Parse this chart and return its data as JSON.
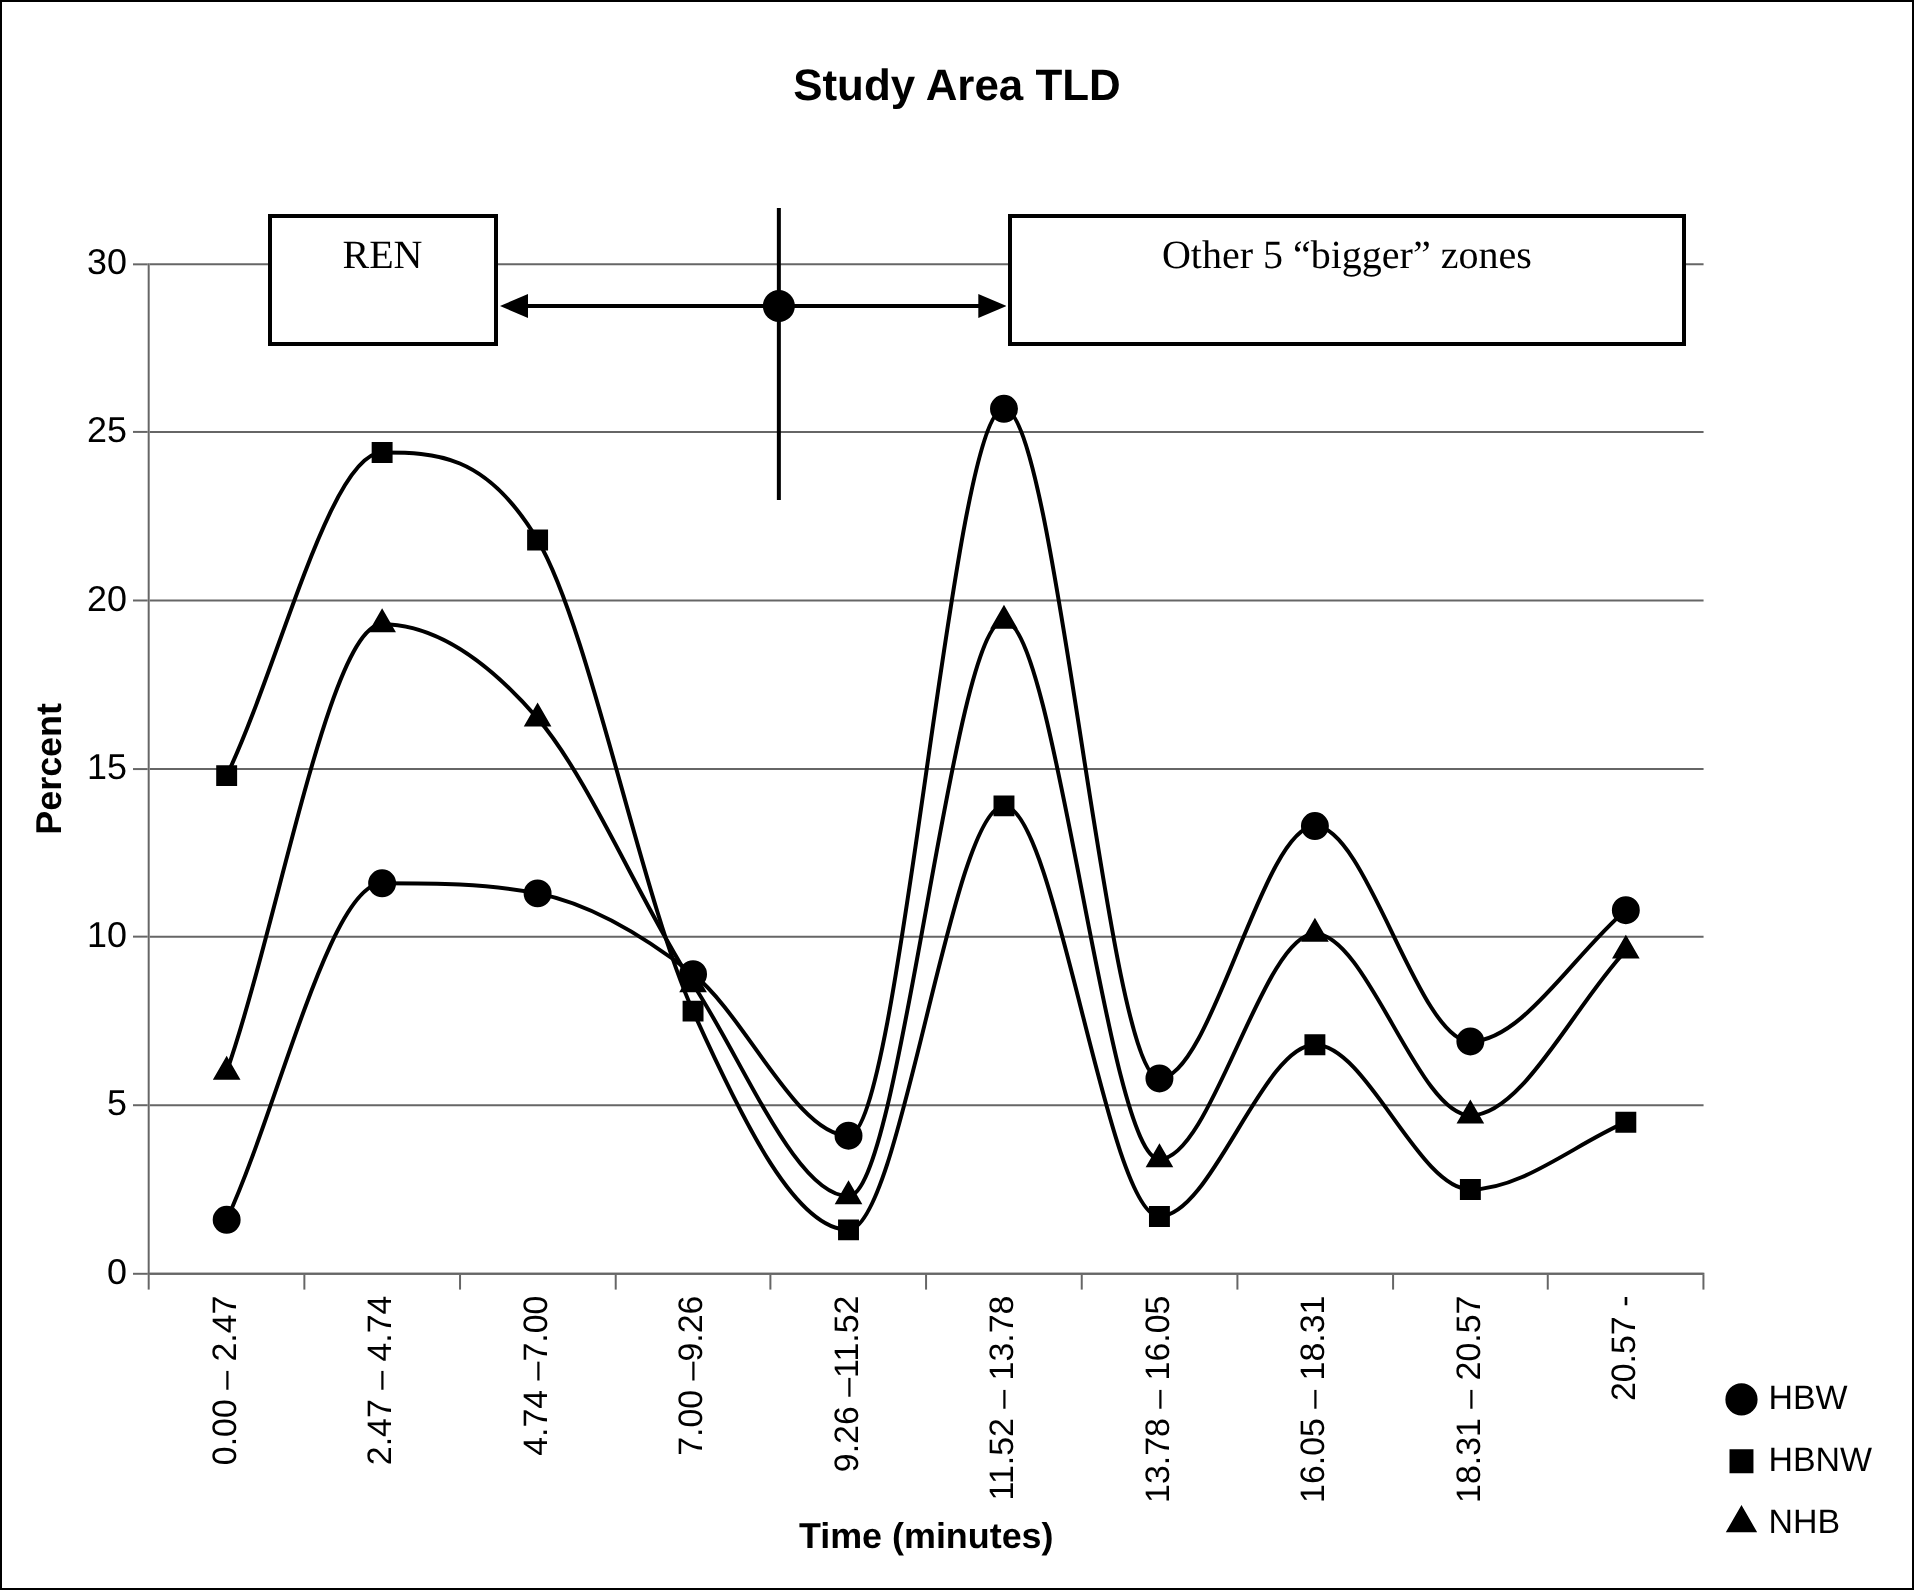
{
  "chart_data": {
    "type": "line",
    "title": "Study Area TLD",
    "xlabel": "Time (minutes)",
    "ylabel": "Percent",
    "categories": [
      "0.00 – 2.47",
      "2.47 – 4.74",
      "4.74 –7.00",
      "7.00 –9.26",
      "9.26 –11.52",
      "11.52 – 13.78",
      "13.78 – 16.05",
      "16.05 – 18.31",
      "18.31 – 20.57",
      "20.57 -"
    ],
    "series": [
      {
        "name": "HBW",
        "color": "#000000",
        "marker": "circle",
        "values": [
          1.6,
          11.6,
          11.3,
          8.9,
          4.1,
          25.7,
          5.8,
          13.3,
          6.9,
          10.8
        ]
      },
      {
        "name": "HBNW",
        "color": "#000000",
        "marker": "square",
        "values": [
          14.8,
          24.4,
          21.8,
          7.8,
          1.3,
          13.9,
          1.7,
          6.8,
          2.5,
          4.5
        ]
      },
      {
        "name": "NHB",
        "color": "#000000",
        "marker": "triangle",
        "values": [
          6.0,
          19.3,
          16.5,
          8.6,
          2.3,
          19.4,
          3.4,
          10.1,
          4.7,
          9.6
        ]
      }
    ],
    "ylim": [
      0,
      30
    ],
    "yticks": [
      0,
      5,
      10,
      15,
      20,
      25,
      30
    ],
    "grid": "y",
    "legend": "bottom right",
    "line_style": "solid",
    "annotations": [
      "REN",
      "Other 5 “bigger” zones"
    ]
  }
}
